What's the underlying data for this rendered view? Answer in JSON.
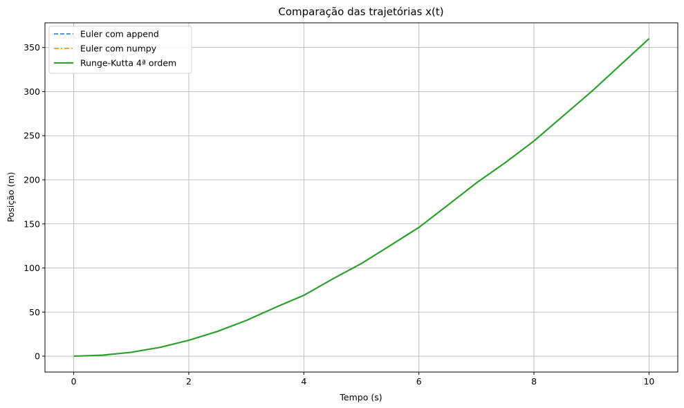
{
  "chart_data": {
    "type": "line",
    "title": "Comparação das trajetórias x(t)",
    "xlabel": "Tempo (s)",
    "ylabel": "Posição (m)",
    "xlim": [
      -0.5,
      10.5
    ],
    "ylim": [
      -18,
      378
    ],
    "xticks": [
      0,
      2,
      4,
      6,
      8,
      10
    ],
    "yticks": [
      0,
      50,
      100,
      150,
      200,
      250,
      300,
      350
    ],
    "grid": true,
    "legend_position": "upper-left",
    "x": [
      0,
      0.5,
      1,
      1.5,
      2,
      2.5,
      3,
      3.5,
      4,
      4.5,
      5,
      5.5,
      6,
      6.5,
      7,
      7.5,
      8,
      8.5,
      9,
      9.5,
      10
    ],
    "series": [
      {
        "name": "Euler com append",
        "color": "#1f77b4",
        "style": "dashed",
        "values": [
          0,
          1.1,
          4.4,
          10.0,
          18.0,
          28.1,
          40.5,
          55.1,
          69.0,
          87.5,
          105.0,
          125.4,
          146.0,
          171.1,
          196.5,
          219.4,
          244.0,
          272.0,
          300.0,
          330.0,
          360.0
        ]
      },
      {
        "name": "Euler com numpy",
        "color": "#ff7f0e",
        "style": "dashdot",
        "values": [
          0,
          1.1,
          4.4,
          10.0,
          18.0,
          28.1,
          40.5,
          55.1,
          69.0,
          87.5,
          105.0,
          125.4,
          146.0,
          171.1,
          196.5,
          219.4,
          244.0,
          272.0,
          300.0,
          330.0,
          360.0
        ]
      },
      {
        "name": "Runge-Kutta 4ª ordem",
        "color": "#2ca02c",
        "style": "solid",
        "values": [
          0,
          1.1,
          4.4,
          10.0,
          18.0,
          28.1,
          40.5,
          55.1,
          69.0,
          87.5,
          105.0,
          125.4,
          146.0,
          171.1,
          196.5,
          219.4,
          244.0,
          272.0,
          300.0,
          330.0,
          360.0
        ]
      }
    ]
  }
}
